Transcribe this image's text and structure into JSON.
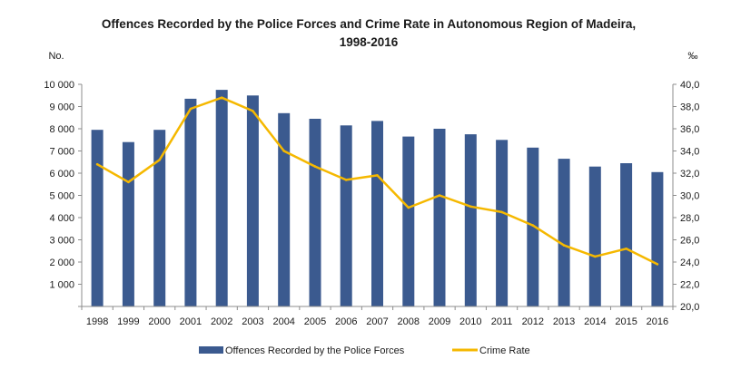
{
  "chart_data": {
    "type": "bar+line",
    "title_line1": "Offences Recorded by the Police Forces and Crime Rate in Autonomous Region of Madeira,",
    "title_line2": "1998-2016",
    "ylabel_left": "No.",
    "ylabel_right": "‰",
    "categories": [
      "1998",
      "1999",
      "2000",
      "2001",
      "2002",
      "2003",
      "2004",
      "2005",
      "2006",
      "2007",
      "2008",
      "2009",
      "2010",
      "2011",
      "2012",
      "2013",
      "2014",
      "2015",
      "2016"
    ],
    "ylim_left": [
      0,
      10000
    ],
    "yticks_left": [
      0,
      1000,
      2000,
      3000,
      4000,
      5000,
      6000,
      7000,
      8000,
      9000,
      10000
    ],
    "ytick_labels_left": [
      "",
      "1 000",
      "2 000",
      "3 000",
      "4 000",
      "5 000",
      "6 000",
      "7 000",
      "8 000",
      "9 000",
      "10 000"
    ],
    "ylim_right": [
      20.0,
      40.0
    ],
    "yticks_right": [
      20.0,
      22.0,
      24.0,
      26.0,
      28.0,
      30.0,
      32.0,
      34.0,
      36.0,
      38.0,
      40.0
    ],
    "ytick_labels_right": [
      "20,0",
      "22,0",
      "24,0",
      "26,0",
      "28,0",
      "30,0",
      "32,0",
      "34,0",
      "36,0",
      "38,0",
      "40,0"
    ],
    "series": [
      {
        "name": "Offences Recorded by the Police Forces",
        "kind": "bar",
        "axis": "left",
        "color": "#3b5a8f",
        "values": [
          7950,
          7400,
          7950,
          9350,
          9750,
          9500,
          8700,
          8450,
          8150,
          8350,
          7650,
          8000,
          7750,
          7500,
          7150,
          6650,
          6300,
          6450,
          6050
        ]
      },
      {
        "name": "Crime Rate",
        "kind": "line",
        "axis": "right",
        "color": "#f5b800",
        "values": [
          32.8,
          31.2,
          33.2,
          37.8,
          38.8,
          37.6,
          34.0,
          32.6,
          31.4,
          31.8,
          28.9,
          30.0,
          29.0,
          28.5,
          27.3,
          25.5,
          24.5,
          25.2,
          23.8
        ]
      }
    ],
    "grid": false,
    "legend_position": "bottom"
  }
}
